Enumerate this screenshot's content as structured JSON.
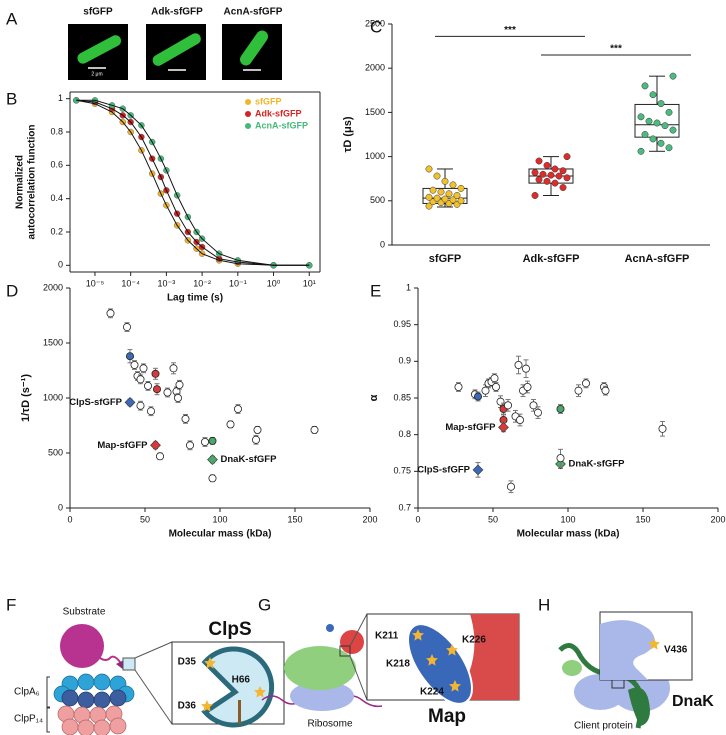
{
  "panel_labels": [
    "A",
    "B",
    "C",
    "D",
    "E",
    "F",
    "G",
    "H"
  ],
  "microscopy": {
    "titles": [
      "sfGFP",
      "Adk-sfGFP",
      "AcnA-sfGFP"
    ],
    "scale_bar_label": "2 μm"
  },
  "chart_data": [
    {
      "type": "line",
      "xlabel": "Lag time (s)",
      "ylabel": [
        "Normalized",
        "autocorrelation function"
      ],
      "xscale": "log",
      "frame": true,
      "legend": "upper right",
      "x": [
        3e-06,
        1e-05,
        3e-05,
        6e-05,
        0.0001,
        0.0002,
        0.0004,
        0.0007,
        0.001,
        0.002,
        0.004,
        0.007,
        0.01,
        0.03,
        0.1,
        1,
        10
      ],
      "series": [
        {
          "name": "sfGFP",
          "color": "#f2b52a",
          "values": [
            0.99,
            0.97,
            0.92,
            0.86,
            0.8,
            0.69,
            0.55,
            0.43,
            0.36,
            0.24,
            0.15,
            0.1,
            0.07,
            0.03,
            0.01,
            0,
            0
          ]
        },
        {
          "name": "Adk-sfGFP",
          "color": "#d42323",
          "values": [
            0.99,
            0.98,
            0.94,
            0.9,
            0.86,
            0.77,
            0.64,
            0.53,
            0.45,
            0.31,
            0.2,
            0.14,
            0.11,
            0.04,
            0.02,
            0,
            0
          ]
        },
        {
          "name": "AcnA-sfGFP",
          "color": "#45b97c",
          "values": [
            0.99,
            0.99,
            0.96,
            0.94,
            0.9,
            0.84,
            0.74,
            0.64,
            0.57,
            0.42,
            0.29,
            0.2,
            0.16,
            0.07,
            0.03,
            0,
            0
          ]
        }
      ],
      "xlim": [
        2e-06,
        20
      ],
      "xticks": [
        {
          "value": 1e-05,
          "label": "10⁻⁵"
        },
        {
          "value": 0.0001,
          "label": "10⁻⁴"
        },
        {
          "value": 0.001,
          "label": "10⁻³"
        },
        {
          "value": 0.01,
          "label": "10⁻²"
        },
        {
          "value": 0.1,
          "label": "10⁻¹"
        },
        {
          "value": 1,
          "label": "10⁰"
        },
        {
          "value": 10,
          "label": "10¹"
        }
      ],
      "ylim": [
        -0.04,
        1.04
      ],
      "yticks": [
        0,
        0.2,
        0.4,
        0.6,
        0.8,
        1
      ]
    },
    {
      "type": "box",
      "ylabel": "τD (μs)",
      "categories": [
        "sfGFP",
        "Adk-sfGFP",
        "AcnA-sfGFP"
      ],
      "colors": [
        "#f2c12e",
        "#e02b2b",
        "#4cbb7f"
      ],
      "whisker_low": [
        430,
        560,
        1060
      ],
      "q1": [
        470,
        700,
        1220
      ],
      "median": [
        530,
        780,
        1360
      ],
      "q3": [
        640,
        860,
        1590
      ],
      "whisker_high": [
        860,
        1000,
        1910
      ],
      "points": [
        [
          440,
          460,
          470,
          480,
          490,
          500,
          510,
          520,
          530,
          540,
          560,
          580,
          600,
          620,
          640,
          680,
          720,
          780,
          860
        ],
        [
          560,
          650,
          700,
          720,
          740,
          760,
          780,
          790,
          800,
          820,
          840,
          860,
          900,
          950,
          1000
        ],
        [
          1060,
          1100,
          1150,
          1200,
          1250,
          1300,
          1350,
          1380,
          1400,
          1450,
          1500,
          1600,
          1700,
          1800,
          1910
        ]
      ],
      "significance": [
        {
          "label": "***",
          "y": 2360,
          "span": [
            0,
            1
          ]
        },
        {
          "label": "***",
          "y": 2150,
          "span": [
            1,
            2
          ]
        }
      ],
      "ylim": [
        0,
        2500
      ],
      "yticks": [
        0,
        500,
        1000,
        1500,
        2000,
        2500
      ]
    },
    {
      "type": "scatter",
      "xlabel": "Molecular mass (kDa)",
      "ylabel": "1/τD (s⁻¹)",
      "x": [
        27,
        38,
        40,
        43,
        45,
        47,
        49,
        52,
        40,
        47,
        54,
        57,
        58,
        57,
        60,
        65,
        69,
        71,
        72,
        73,
        77,
        80,
        90,
        95,
        95,
        95,
        107,
        112,
        124,
        125,
        163
      ],
      "values": [
        1770,
        1645,
        1380,
        1300,
        1200,
        1170,
        1270,
        1110,
        960,
        930,
        880,
        1220,
        1080,
        570,
        470,
        1050,
        1270,
        1060,
        1000,
        1120,
        810,
        570,
        600,
        610,
        440,
        270,
        760,
        900,
        620,
        710,
        710
      ],
      "errors": [
        40,
        40,
        60,
        40,
        40,
        40,
        40,
        40,
        30,
        40,
        40,
        50,
        50,
        30,
        30,
        40,
        50,
        40,
        40,
        40,
        40,
        40,
        40,
        30,
        30,
        30,
        30,
        40,
        40,
        30,
        30
      ],
      "colors": [
        "#fff",
        "#fff",
        "#3a6ab8",
        "#fff",
        "#fff",
        "#fff",
        "#fff",
        "#fff",
        "#3a6ab8",
        "#fff",
        "#fff",
        "#d63a3a",
        "#d63a3a",
        "#d63a3a",
        "#fff",
        "#fff",
        "#fff",
        "#fff",
        "#fff",
        "#fff",
        "#fff",
        "#fff",
        "#fff",
        "#4aa86a",
        "#4aa86a",
        "#fff",
        "#fff",
        "#fff",
        "#fff",
        "#fff",
        "#fff"
      ],
      "point_labels": [
        null,
        null,
        null,
        null,
        null,
        null,
        null,
        null,
        "ClpS-sfGFP",
        null,
        null,
        null,
        null,
        "Map-sfGFP",
        null,
        null,
        null,
        null,
        null,
        null,
        null,
        null,
        null,
        null,
        "DnaK-sfGFP",
        null,
        null,
        null,
        null,
        null,
        null
      ],
      "xlim": [
        0,
        200
      ],
      "xticks": [
        0,
        50,
        100,
        150,
        200
      ],
      "ylim": [
        0,
        2000
      ],
      "yticks": [
        0,
        500,
        1000,
        1500,
        2000
      ]
    },
    {
      "type": "scatter",
      "xlabel": "Molecular mass (kDa)",
      "ylabel": "α",
      "x": [
        27,
        38,
        40,
        40,
        45,
        47,
        49,
        51,
        52,
        55,
        57,
        57,
        57,
        60,
        62,
        65,
        67,
        68,
        70,
        72,
        73,
        77,
        80,
        95,
        95,
        95,
        107,
        112,
        124,
        125,
        163
      ],
      "values": [
        0.865,
        0.855,
        0.852,
        0.752,
        0.86,
        0.87,
        0.872,
        0.877,
        0.865,
        0.845,
        0.835,
        0.82,
        0.81,
        0.84,
        0.729,
        0.825,
        0.895,
        0.82,
        0.86,
        0.89,
        0.865,
        0.84,
        0.83,
        0.835,
        0.76,
        0.768,
        0.86,
        0.87,
        0.865,
        0.86,
        0.808
      ],
      "errors": [
        0.006,
        0.006,
        0.006,
        0.01,
        0.008,
        0.006,
        0.006,
        0.006,
        0.006,
        0.008,
        0.008,
        0.008,
        0.006,
        0.008,
        0.008,
        0.008,
        0.012,
        0.008,
        0.008,
        0.012,
        0.008,
        0.008,
        0.008,
        0.006,
        0.006,
        0.012,
        0.008,
        0.006,
        0.006,
        0.006,
        0.01
      ],
      "colors": [
        "#fff",
        "#fff",
        "#3a6ab8",
        "#3a6ab8",
        "#fff",
        "#fff",
        "#fff",
        "#fff",
        "#fff",
        "#fff",
        "#d63a3a",
        "#d63a3a",
        "#d63a3a",
        "#fff",
        "#fff",
        "#fff",
        "#fff",
        "#fff",
        "#fff",
        "#fff",
        "#fff",
        "#fff",
        "#fff",
        "#4aa86a",
        "#4aa86a",
        "#fff",
        "#fff",
        "#fff",
        "#fff",
        "#fff",
        "#fff"
      ],
      "point_labels": [
        null,
        null,
        null,
        "ClpS-sfGFP",
        null,
        null,
        null,
        null,
        null,
        null,
        null,
        null,
        "Map-sfGFP",
        null,
        null,
        null,
        null,
        null,
        null,
        null,
        null,
        null,
        null,
        null,
        "DnaK-sfGFP",
        null,
        null,
        null,
        null,
        null,
        null
      ],
      "xlim": [
        0,
        200
      ],
      "xticks": [
        0,
        50,
        100,
        150,
        200
      ],
      "ylim": [
        0.7,
        1
      ],
      "yticks": [
        0.7,
        0.75,
        0.8,
        0.85,
        0.9,
        0.95,
        1
      ]
    }
  ],
  "diagrams": {
    "clps": {
      "substrate": "Substrate",
      "title": "ClpS",
      "d35": "D35",
      "h66": "H66",
      "d36": "D36",
      "clpa": "ClpA₆",
      "clpp": "ClpP₁₄"
    },
    "map": {
      "title": "Map",
      "residues": [
        "K211",
        "K218",
        "K226",
        "K224"
      ],
      "ribosome": "Ribosome"
    },
    "dnak": {
      "title": "DnaK",
      "residue": "V436",
      "client": "Client protein"
    }
  }
}
